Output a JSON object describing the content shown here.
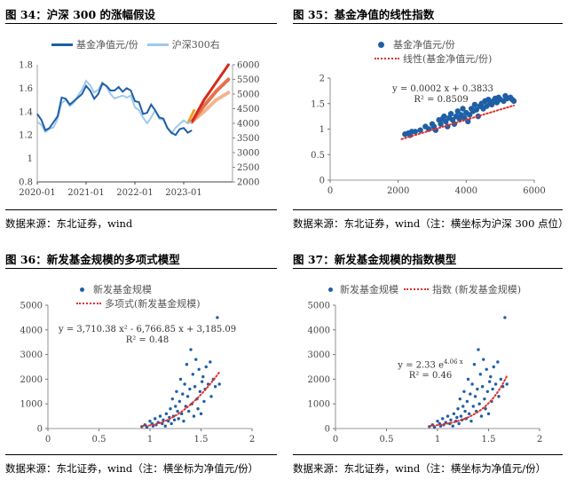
{
  "figures": [
    {
      "title": "图 34：沪深 300 的涨幅假设",
      "source": "数据来源：东北证券，wind"
    },
    {
      "title": "图 35：基金净值的线性指数",
      "source": "数据来源：东北证券，wind（注：横坐标为沪深 300 点位）"
    },
    {
      "title": "图 36：新发基金规模的多项式模型",
      "source": "数据来源：东北证券，wind（注：横坐标为净值元/份）"
    },
    {
      "title": "图 37：新发基金规模的指数模型",
      "source": "数据来源：东北证券，wind（注：横坐标为净值元/份）"
    }
  ],
  "chart_data": [
    {
      "type": "line",
      "x_ticks": [
        "2020-01",
        "2021-01",
        "2022-01",
        "2023-01"
      ],
      "y_left_ticks": [
        "0.8",
        "1",
        "1.2",
        "1.4",
        "1.6",
        "1.8"
      ],
      "y_right_ticks": [
        "2000",
        "2500",
        "3000",
        "3500",
        "4000",
        "4500",
        "5000",
        "5500",
        "6000"
      ],
      "ylim_left": [
        0.8,
        1.8
      ],
      "ylim_right": [
        2000,
        6000
      ],
      "colors": {
        "nav": "#1f5fa6",
        "hs300": "#9fc9ea",
        "proj_high": "#d62a1c",
        "proj_mid": "#e8704a",
        "proj_low": "#f2b48e",
        "proj_start": "#f0a020"
      },
      "series": [
        {
          "name": "基金净值元/份",
          "axis": "left",
          "x": [
            "2020-01",
            "2020-02",
            "2020-03",
            "2020-04",
            "2020-05",
            "2020-06",
            "2020-07",
            "2020-08",
            "2020-09",
            "2020-10",
            "2020-11",
            "2020-12",
            "2021-01",
            "2021-02",
            "2021-03",
            "2021-04",
            "2021-05",
            "2021-06",
            "2021-07",
            "2021-08",
            "2021-09",
            "2021-10",
            "2021-11",
            "2021-12",
            "2022-01",
            "2022-02",
            "2022-03",
            "2022-04",
            "2022-05",
            "2022-06",
            "2022-07",
            "2022-08",
            "2022-09",
            "2022-10",
            "2022-11",
            "2022-12",
            "2023-01",
            "2023-02",
            "2023-03"
          ],
          "values": [
            1.38,
            1.33,
            1.24,
            1.26,
            1.31,
            1.36,
            1.52,
            1.51,
            1.46,
            1.49,
            1.52,
            1.55,
            1.62,
            1.58,
            1.51,
            1.55,
            1.64,
            1.62,
            1.58,
            1.58,
            1.61,
            1.57,
            1.6,
            1.58,
            1.49,
            1.48,
            1.38,
            1.39,
            1.46,
            1.41,
            1.35,
            1.34,
            1.26,
            1.22,
            1.2,
            1.25,
            1.26,
            1.22,
            1.24
          ]
        },
        {
          "name": "沪深300右",
          "axis": "right",
          "x": [
            "2020-01",
            "2020-02",
            "2020-03",
            "2020-04",
            "2020-05",
            "2020-06",
            "2020-07",
            "2020-08",
            "2020-09",
            "2020-10",
            "2020-11",
            "2020-12",
            "2021-01",
            "2021-02",
            "2021-03",
            "2021-04",
            "2021-05",
            "2021-06",
            "2021-07",
            "2021-08",
            "2021-09",
            "2021-10",
            "2021-11",
            "2021-12",
            "2022-01",
            "2022-02",
            "2022-03",
            "2022-04",
            "2022-05",
            "2022-06",
            "2022-07",
            "2022-08",
            "2022-09",
            "2022-10",
            "2022-11",
            "2022-12",
            "2023-01",
            "2023-02",
            "2023-03"
          ],
          "values": [
            4050,
            3950,
            3700,
            3810,
            3860,
            4150,
            4700,
            4800,
            4600,
            4700,
            4950,
            5150,
            5450,
            5300,
            5050,
            5150,
            5400,
            5250,
            5000,
            4850,
            4900,
            4950,
            4880,
            4950,
            4550,
            4450,
            4200,
            4000,
            4200,
            4450,
            4150,
            4120,
            3850,
            3650,
            3850,
            3980,
            4100,
            4000,
            4050
          ]
        },
        {
          "axis": "right",
          "x": [
            "2023-03",
            "2023-06",
            "2023-09",
            "2023-12"
          ],
          "values": [
            4050,
            4800,
            5400,
            6000
          ]
        },
        {
          "axis": "right",
          "x": [
            "2023-03",
            "2023-06",
            "2023-09",
            "2023-12"
          ],
          "values": [
            4050,
            4600,
            5100,
            5500
          ]
        },
        {
          "axis": "right",
          "x": [
            "2023-03",
            "2023-06",
            "2023-09",
            "2023-12"
          ],
          "values": [
            4050,
            4400,
            4800,
            5050
          ]
        }
      ]
    },
    {
      "type": "scatter",
      "legend": [
        "基金净值元/份",
        "线性(基金净值元/份)"
      ],
      "equation": "y = 0.0002 x + 0.3833",
      "r2": "R² = 0.8509",
      "x_ticks": [
        "0",
        "2000",
        "4000",
        "6000"
      ],
      "y_ticks": [
        "0",
        "0.5",
        "1",
        "1.5",
        "2"
      ],
      "xlim": [
        0,
        6000
      ],
      "ylim": [
        0,
        2
      ],
      "trend": {
        "slope": 0.0002,
        "intercept": 0.3833,
        "x_range": [
          2100,
          5400
        ]
      },
      "colors": {
        "points": "#1f5fa6",
        "trend": "#e0302a"
      },
      "points": [
        [
          2200,
          0.9
        ],
        [
          2300,
          0.92
        ],
        [
          2350,
          0.88
        ],
        [
          2400,
          0.95
        ],
        [
          2500,
          0.95
        ],
        [
          2650,
          0.98
        ],
        [
          2800,
          1.05
        ],
        [
          2900,
          1.0
        ],
        [
          3000,
          1.1
        ],
        [
          3050,
          1.05
        ],
        [
          3100,
          0.98
        ],
        [
          3200,
          1.18
        ],
        [
          3250,
          1.1
        ],
        [
          3300,
          1.2
        ],
        [
          3350,
          1.25
        ],
        [
          3400,
          1.15
        ],
        [
          3450,
          1.05
        ],
        [
          3500,
          1.22
        ],
        [
          3550,
          1.3
        ],
        [
          3600,
          1.18
        ],
        [
          3650,
          1.1
        ],
        [
          3700,
          1.25
        ],
        [
          3750,
          1.35
        ],
        [
          3800,
          1.2
        ],
        [
          3850,
          1.28
        ],
        [
          3900,
          1.4
        ],
        [
          3950,
          1.22
        ],
        [
          4000,
          1.32
        ],
        [
          4050,
          1.15
        ],
        [
          4100,
          1.28
        ],
        [
          4150,
          1.4
        ],
        [
          4200,
          1.35
        ],
        [
          4250,
          1.48
        ],
        [
          4300,
          1.38
        ],
        [
          4350,
          1.25
        ],
        [
          4400,
          1.45
        ],
        [
          4450,
          1.5
        ],
        [
          4500,
          1.4
        ],
        [
          4550,
          1.55
        ],
        [
          4600,
          1.45
        ],
        [
          4650,
          1.58
        ],
        [
          4700,
          1.5
        ],
        [
          4750,
          1.48
        ],
        [
          4800,
          1.55
        ],
        [
          4850,
          1.6
        ],
        [
          4900,
          1.52
        ],
        [
          4950,
          1.62
        ],
        [
          5000,
          1.58
        ],
        [
          5100,
          1.55
        ],
        [
          5150,
          1.65
        ],
        [
          5200,
          1.6
        ],
        [
          5300,
          1.62
        ],
        [
          5350,
          1.58
        ],
        [
          5400,
          1.55
        ]
      ]
    },
    {
      "type": "scatter",
      "legend": [
        "新发基金规模",
        "多项式(新发基金规模)"
      ],
      "equation": "y = 3,710.38 x² - 6,766.85 x + 3,185.09",
      "r2": "R² = 0.48",
      "x_ticks": [
        "0",
        "0.5",
        "1",
        "1.5",
        "2"
      ],
      "y_ticks": [
        "0",
        "1000",
        "2000",
        "3000",
        "4000",
        "5000"
      ],
      "xlim": [
        0,
        2
      ],
      "ylim": [
        0,
        5000
      ],
      "trend": {
        "kind": "poly2",
        "a": 3710.38,
        "b": -6766.85,
        "c": 3185.09,
        "x_range": [
          0.92,
          1.68
        ]
      },
      "colors": {
        "points": "#1f5fa6",
        "trend": "#e0302a"
      },
      "points": [
        [
          0.92,
          80
        ],
        [
          0.95,
          150
        ],
        [
          0.97,
          50
        ],
        [
          1.0,
          300
        ],
        [
          1.02,
          200
        ],
        [
          1.03,
          100
        ],
        [
          1.05,
          400
        ],
        [
          1.06,
          150
        ],
        [
          1.08,
          250
        ],
        [
          1.1,
          500
        ],
        [
          1.12,
          200
        ],
        [
          1.13,
          350
        ],
        [
          1.15,
          100
        ],
        [
          1.16,
          600
        ],
        [
          1.18,
          300
        ],
        [
          1.19,
          450
        ],
        [
          1.2,
          800
        ],
        [
          1.21,
          200
        ],
        [
          1.22,
          1200
        ],
        [
          1.23,
          500
        ],
        [
          1.24,
          350
        ],
        [
          1.25,
          900
        ],
        [
          1.26,
          1500
        ],
        [
          1.27,
          700
        ],
        [
          1.28,
          400
        ],
        [
          1.29,
          1100
        ],
        [
          1.3,
          2000
        ],
        [
          1.31,
          600
        ],
        [
          1.32,
          1400
        ],
        [
          1.33,
          300
        ],
        [
          1.34,
          1800
        ],
        [
          1.35,
          900
        ],
        [
          1.36,
          2600
        ],
        [
          1.37,
          1300
        ],
        [
          1.38,
          700
        ],
        [
          1.39,
          1600
        ],
        [
          1.4,
          3200
        ],
        [
          1.41,
          1000
        ],
        [
          1.42,
          2200
        ],
        [
          1.43,
          500
        ],
        [
          1.44,
          1700
        ],
        [
          1.45,
          2800
        ],
        [
          1.46,
          1200
        ],
        [
          1.47,
          800
        ],
        [
          1.48,
          2400
        ],
        [
          1.49,
          1500
        ],
        [
          1.5,
          600
        ],
        [
          1.51,
          1900
        ],
        [
          1.52,
          2100
        ],
        [
          1.53,
          1100
        ],
        [
          1.54,
          1600
        ],
        [
          1.55,
          2500
        ],
        [
          1.57,
          1800
        ],
        [
          1.59,
          2700
        ],
        [
          1.6,
          1300
        ],
        [
          1.62,
          2000
        ],
        [
          1.64,
          1700
        ],
        [
          1.66,
          4500
        ],
        [
          1.68,
          1800
        ]
      ]
    },
    {
      "type": "scatter",
      "legend": [
        "新发基金规模",
        "指数 (新发基金规模)"
      ],
      "equation": "y = 2.33 e",
      "equation_exp": "4.06 x",
      "r2": "R² = 0.46",
      "x_ticks": [
        "0",
        "0.5",
        "1",
        "1.5",
        "2"
      ],
      "y_ticks": [
        "0",
        "1000",
        "2000",
        "3000",
        "4000",
        "5000"
      ],
      "xlim": [
        0,
        2
      ],
      "ylim": [
        0,
        5000
      ],
      "trend": {
        "kind": "exp",
        "a": 2.33,
        "b": 4.06,
        "x_range": [
          0.92,
          1.68
        ]
      },
      "colors": {
        "points": "#1f5fa6",
        "trend": "#e0302a"
      },
      "points": [
        [
          0.92,
          80
        ],
        [
          0.95,
          150
        ],
        [
          0.97,
          50
        ],
        [
          1.0,
          300
        ],
        [
          1.02,
          200
        ],
        [
          1.03,
          100
        ],
        [
          1.05,
          400
        ],
        [
          1.06,
          150
        ],
        [
          1.08,
          250
        ],
        [
          1.1,
          500
        ],
        [
          1.12,
          200
        ],
        [
          1.13,
          350
        ],
        [
          1.15,
          100
        ],
        [
          1.16,
          600
        ],
        [
          1.18,
          300
        ],
        [
          1.19,
          450
        ],
        [
          1.2,
          800
        ],
        [
          1.21,
          200
        ],
        [
          1.22,
          1200
        ],
        [
          1.23,
          500
        ],
        [
          1.24,
          350
        ],
        [
          1.25,
          900
        ],
        [
          1.26,
          1500
        ],
        [
          1.27,
          700
        ],
        [
          1.28,
          400
        ],
        [
          1.29,
          1100
        ],
        [
          1.3,
          2000
        ],
        [
          1.31,
          600
        ],
        [
          1.32,
          1400
        ],
        [
          1.33,
          300
        ],
        [
          1.34,
          1800
        ],
        [
          1.35,
          900
        ],
        [
          1.36,
          2600
        ],
        [
          1.37,
          1300
        ],
        [
          1.38,
          700
        ],
        [
          1.39,
          1600
        ],
        [
          1.4,
          3200
        ],
        [
          1.41,
          1000
        ],
        [
          1.42,
          2200
        ],
        [
          1.43,
          500
        ],
        [
          1.44,
          1700
        ],
        [
          1.45,
          2800
        ],
        [
          1.46,
          1200
        ],
        [
          1.47,
          800
        ],
        [
          1.48,
          2400
        ],
        [
          1.49,
          1500
        ],
        [
          1.5,
          600
        ],
        [
          1.51,
          1900
        ],
        [
          1.52,
          2100
        ],
        [
          1.53,
          1100
        ],
        [
          1.54,
          1600
        ],
        [
          1.55,
          2500
        ],
        [
          1.57,
          1800
        ],
        [
          1.59,
          2700
        ],
        [
          1.6,
          1300
        ],
        [
          1.62,
          2000
        ],
        [
          1.64,
          1700
        ],
        [
          1.66,
          4500
        ],
        [
          1.68,
          1800
        ]
      ]
    }
  ]
}
